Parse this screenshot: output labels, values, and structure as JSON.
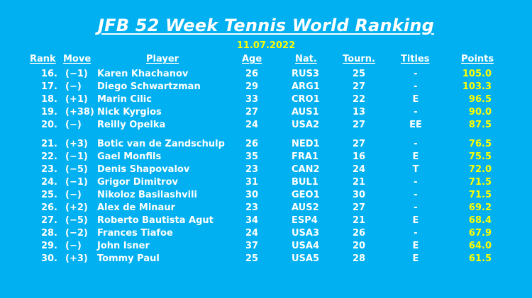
{
  "title": "JFB 52 Week Tennis World Ranking",
  "date": "11.07.2022",
  "headers": {
    "rank": "Rank",
    "move": "Move",
    "player": "Player",
    "age": "Age",
    "nat": "Nat.",
    "tourn": "Tourn.",
    "titles": "Titles",
    "points": "Points"
  },
  "colors": {
    "background": "#00B0F0",
    "text": "#FFFFFF",
    "points": "#FFFF00"
  },
  "rows": [
    {
      "rank": "16.",
      "move": "(−1)",
      "player": "Karen Khachanov",
      "age": "26",
      "nat": "RUS3",
      "tourn": "25",
      "titles": "-",
      "points": "105.0"
    },
    {
      "rank": "17.",
      "move": "(−)",
      "player": "Diego Schwartzman",
      "age": "29",
      "nat": "ARG1",
      "tourn": "27",
      "titles": "-",
      "points": "103.3"
    },
    {
      "rank": "18.",
      "move": "(+1)",
      "player": "Marin Cilic",
      "age": "33",
      "nat": "CRO1",
      "tourn": "22",
      "titles": "E",
      "points": "96.5"
    },
    {
      "rank": "19.",
      "move": "(+38)",
      "player": "Nick Kyrgios",
      "age": "27",
      "nat": "AUS1",
      "tourn": "13",
      "titles": "-",
      "points": "90.0"
    },
    {
      "rank": "20.",
      "move": "(−)",
      "player": "Reilly Opelka",
      "age": "24",
      "nat": "USA2",
      "tourn": "27",
      "titles": "EE",
      "points": "87.5"
    },
    {
      "rank": "21.",
      "move": "(+3)",
      "player": "Botic van de Zandschulp",
      "age": "26",
      "nat": "NED1",
      "tourn": "27",
      "titles": "-",
      "points": "76.5"
    },
    {
      "rank": "22.",
      "move": "(−1)",
      "player": "Gael Monfils",
      "age": "35",
      "nat": "FRA1",
      "tourn": "16",
      "titles": "E",
      "points": "75.5"
    },
    {
      "rank": "23.",
      "move": "(−5)",
      "player": "Denis Shapovalov",
      "age": "23",
      "nat": "CAN2",
      "tourn": "24",
      "titles": "T",
      "points": "72.0"
    },
    {
      "rank": "24.",
      "move": "(−1)",
      "player": "Grigor Dimitrov",
      "age": "31",
      "nat": "BUL1",
      "tourn": "21",
      "titles": "-",
      "points": "71.5"
    },
    {
      "rank": "25.",
      "move": "(−)",
      "player": "Nikoloz Basilashvili",
      "age": "30",
      "nat": "GEO1",
      "tourn": "30",
      "titles": "-",
      "points": "71.5"
    },
    {
      "rank": "26.",
      "move": "(+2)",
      "player": "Alex de Minaur",
      "age": "23",
      "nat": "AUS2",
      "tourn": "27",
      "titles": "-",
      "points": "69.2"
    },
    {
      "rank": "27.",
      "move": "(−5)",
      "player": "Roberto Bautista Agut",
      "age": "34",
      "nat": "ESP4",
      "tourn": "21",
      "titles": "E",
      "points": "68.4"
    },
    {
      "rank": "28.",
      "move": "(−2)",
      "player": "Frances Tiafoe",
      "age": "24",
      "nat": "USA3",
      "tourn": "26",
      "titles": "-",
      "points": "67.9"
    },
    {
      "rank": "29.",
      "move": "(−)",
      "player": "John Isner",
      "age": "37",
      "nat": "USA4",
      "tourn": "20",
      "titles": "E",
      "points": "64.0"
    },
    {
      "rank": "30.",
      "move": "(+3)",
      "player": "Tommy Paul",
      "age": "25",
      "nat": "USA5",
      "tourn": "28",
      "titles": "E",
      "points": "61.5"
    }
  ]
}
